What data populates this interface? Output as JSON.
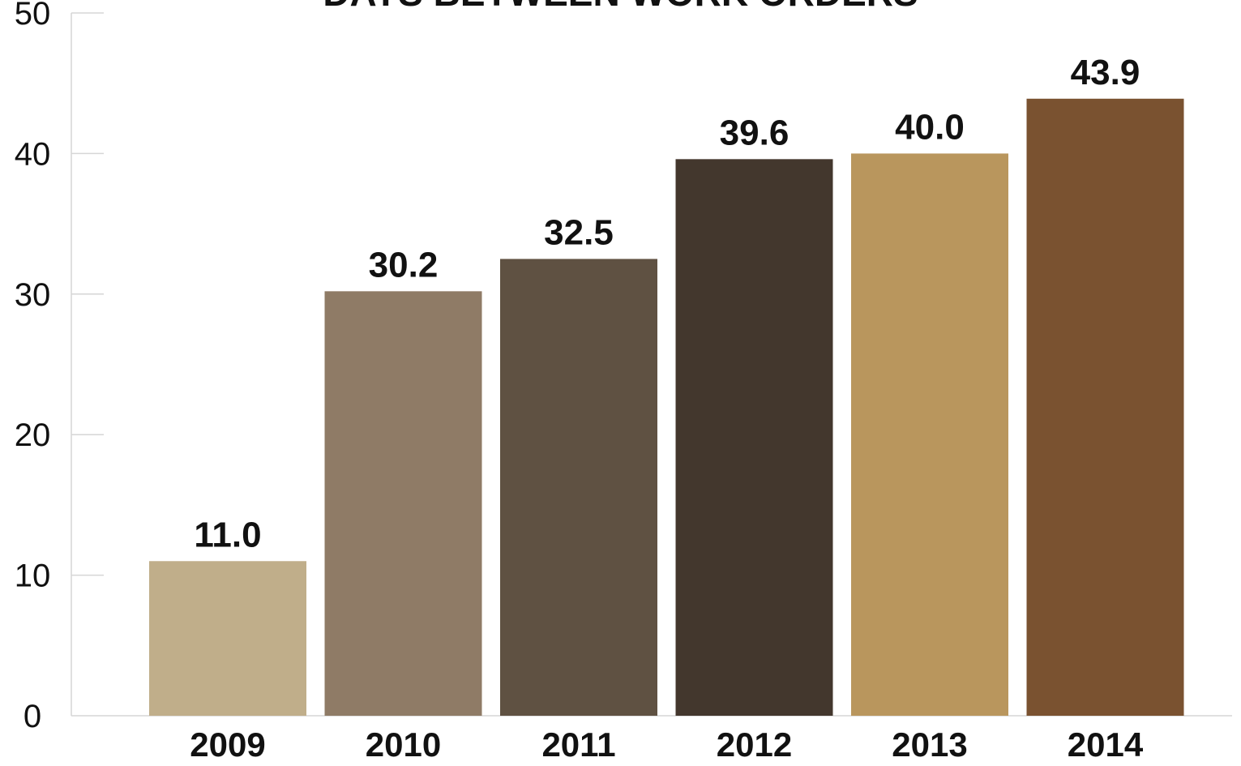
{
  "chart_data": {
    "type": "bar",
    "title": "DAYS BETWEEN WORK ORDERS",
    "xlabel": "",
    "ylabel": "",
    "categories": [
      "2009",
      "2010",
      "2011",
      "2012",
      "2013",
      "2014"
    ],
    "values": [
      11.0,
      30.2,
      32.5,
      39.6,
      40.0,
      43.9
    ],
    "value_labels": [
      "11.0",
      "30.2",
      "32.5",
      "39.6",
      "40.0",
      "43.9"
    ],
    "bar_colors": [
      "#c0ae8a",
      "#8f7b66",
      "#5f5142",
      "#43372d",
      "#b9965d",
      "#7a5230"
    ],
    "ylim": [
      0,
      50
    ],
    "yticks": [
      0,
      10,
      20,
      30,
      40,
      50
    ],
    "grid": false,
    "legend": "none"
  }
}
